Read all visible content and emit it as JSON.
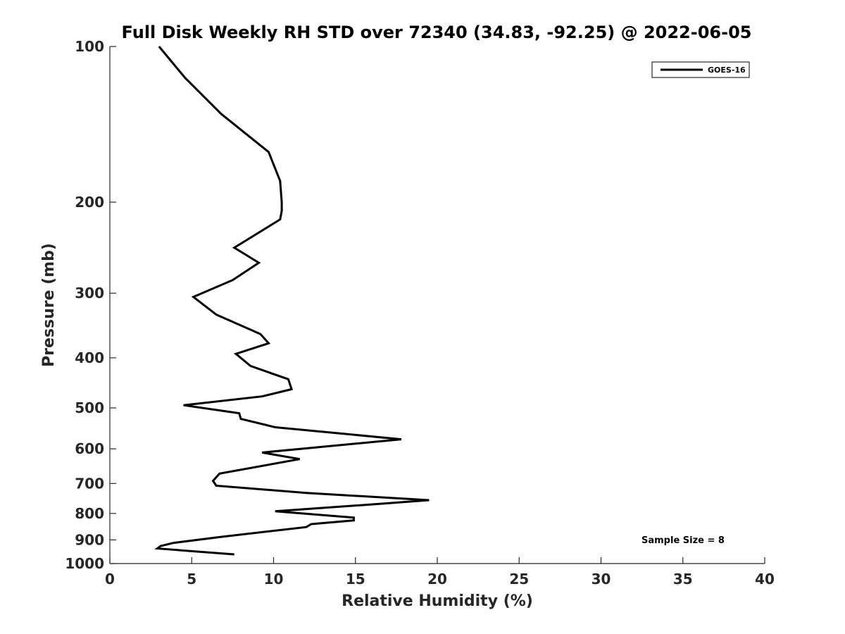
{
  "chart_data": {
    "type": "line",
    "title": "Full Disk Weekly RH STD over 72340 (34.83, -92.25) @ 2022-06-05",
    "xlabel": "Relative Humidity (%)",
    "ylabel": "Pressure (mb)",
    "xlim": [
      0,
      40
    ],
    "ylim": [
      1000,
      100
    ],
    "yscale": "log",
    "y_reversed": true,
    "grid": false,
    "legend_position": "top-right",
    "x_ticks": [
      "0",
      "5",
      "10",
      "15",
      "20",
      "25",
      "30",
      "35",
      "40"
    ],
    "y_ticks": [
      "100",
      "200",
      "300",
      "400",
      "500",
      "600",
      "700",
      "800",
      "900",
      "1000"
    ],
    "annotation": "Sample Size = 8",
    "series": [
      {
        "name": "GOES-16",
        "color": "#000000",
        "x": [
          3.0,
          4.6,
          6.8,
          9.7,
          10.4,
          10.5,
          10.5,
          10.4,
          7.6,
          9.1,
          7.5,
          5.1,
          6.5,
          9.2,
          9.7,
          7.7,
          8.6,
          10.9,
          11.1,
          9.3,
          4.5,
          7.9,
          8.0,
          10.1,
          17.8,
          9.3,
          11.6,
          6.7,
          6.3,
          6.5,
          12.0,
          19.5,
          16.4,
          10.1,
          14.9,
          14.9,
          12.3,
          12.0,
          6.8,
          3.9,
          3.1,
          2.9,
          7.6
        ],
        "y": [
          100,
          115,
          135,
          160,
          182,
          200,
          208,
          216,
          245,
          262,
          283,
          305,
          330,
          360,
          375,
          393,
          415,
          440,
          460,
          475,
          494,
          512,
          525,
          545,
          575,
          610,
          628,
          670,
          692,
          707,
          730,
          754,
          767,
          792,
          815,
          825,
          839,
          850,
          888,
          912,
          925,
          935,
          960
        ]
      }
    ]
  }
}
